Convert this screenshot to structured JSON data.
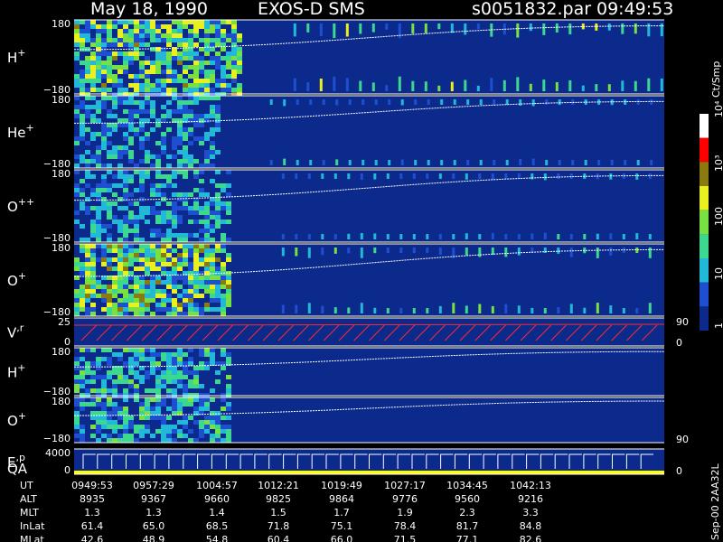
{
  "header": {
    "date": "May 18, 1990",
    "instrument": "EXOS-D SMS",
    "file": "s0051832.par",
    "time": "09:49:53"
  },
  "colors": {
    "background": "#000000",
    "panel_bg": "#0b2a8c",
    "trace": "#ffffff",
    "velocity_trace": "#ff2a2a",
    "qa_bar": "#ffff00"
  },
  "colorbar": {
    "unit": "Ct/Smp",
    "tick_labels": [
      "1",
      "10",
      "100",
      "10³",
      "10⁴"
    ],
    "stops": [
      "#0b2a8c",
      "#1e4fd0",
      "#22b8d8",
      "#3cd890",
      "#78e040",
      "#e8f020",
      "#8a7a10",
      "#ff0000",
      "#ffffff"
    ]
  },
  "footer": {
    "vertical_label": "Sep-00  2AA32L"
  },
  "chart_data": {
    "type": "heatmap",
    "x_time_ticks": [
      "0949:53",
      "0957:29",
      "1004:57",
      "1012:21",
      "1019:49",
      "1027:17",
      "1034:45",
      "1042:13"
    ],
    "panels": [
      {
        "label": "H",
        "sup": "+",
        "y_top": "180",
        "y_bottom": "−180",
        "trace_start": 0.4,
        "trace_end": 0.92,
        "intensity": 0.85,
        "dense_frac": 0.28,
        "sparse": 0.75
      },
      {
        "label": "He",
        "sup": "+",
        "y_top": "180",
        "y_bottom": "−180",
        "trace_start": 0.38,
        "trace_end": 0.92,
        "intensity": 0.45,
        "dense_frac": 0.24,
        "sparse": 0.35
      },
      {
        "label": "O",
        "sup": "++",
        "y_top": "180",
        "y_bottom": "−180",
        "trace_start": 0.42,
        "trace_end": 0.92,
        "intensity": 0.45,
        "dense_frac": 0.26,
        "sparse": 0.35
      },
      {
        "label": "O",
        "sup": "+",
        "y_top": "180",
        "y_bottom": "−180",
        "trace_start": 0.45,
        "trace_end": 0.92,
        "intensity": 0.9,
        "dense_frac": 0.26,
        "sparse": 0.55
      },
      {
        "label": "V",
        "sup": ",r",
        "y_top": "25",
        "y_bottom": "0",
        "right_top": "90",
        "right_bottom": "0",
        "kind": "velocity"
      },
      {
        "label": "H",
        "sup": "+",
        "y_top": "180",
        "y_bottom": "−180",
        "trace_start": 0.4,
        "trace_end": 0.92,
        "intensity": 0.55,
        "dense_frac": 0.26,
        "sparse": 0.0
      },
      {
        "label": "O",
        "sup": "+",
        "y_top": "180",
        "y_bottom": "−180",
        "right_bottom": "90",
        "trace_start": 0.4,
        "trace_end": 0.92,
        "intensity": 0.55,
        "dense_frac": 0.26,
        "sparse": 0.0
      },
      {
        "label": "E",
        "sup": ",p",
        "label2": "QA",
        "y_top": "4000",
        "y_bottom": "0",
        "right_bottom": "0",
        "kind": "energy"
      }
    ],
    "table": {
      "rows": [
        {
          "name": "UT",
          "values": [
            "0949:53",
            "0957:29",
            "1004:57",
            "1012:21",
            "1019:49",
            "1027:17",
            "1034:45",
            "1042:13"
          ]
        },
        {
          "name": "ALT",
          "values": [
            "8935",
            "9367",
            "9660",
            "9825",
            "9864",
            "9776",
            "9560",
            "9216"
          ]
        },
        {
          "name": "MLT",
          "values": [
            "1.3",
            "1.3",
            "1.4",
            "1.5",
            "1.7",
            "1.9",
            "2.3",
            "3.3"
          ]
        },
        {
          "name": "InLat",
          "values": [
            "61.4",
            "65.0",
            "68.5",
            "71.8",
            "75.1",
            "78.4",
            "81.7",
            "84.8"
          ]
        },
        {
          "name": "MLat",
          "values": [
            "42.6",
            "48.9",
            "54.8",
            "60.4",
            "66.0",
            "71.5",
            "77.1",
            "82.6"
          ]
        }
      ]
    }
  }
}
